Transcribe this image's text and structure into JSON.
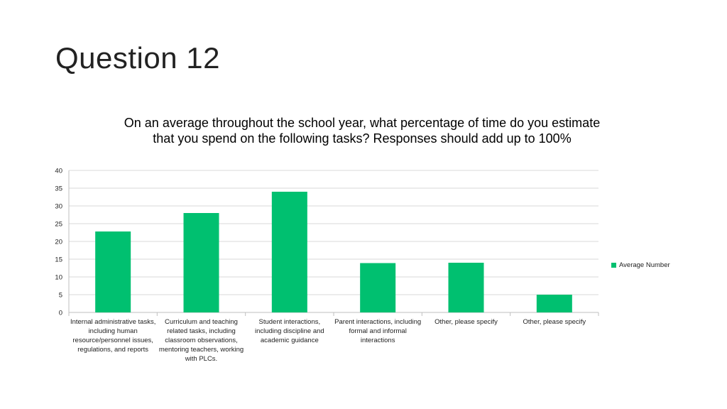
{
  "slide": {
    "title": "Question 12"
  },
  "chart_data": {
    "type": "bar",
    "title": "On an average throughout the school year, what percentage of time do you estimate that you spend on the following tasks?  Responses should add up to 100%",
    "categories": [
      "Internal administrative tasks, including human resource/personnel issues, regulations,  and reports",
      "Curriculum and teaching related tasks, including classroom observations, mentoring teachers, working with PLCs.",
      "Student interactions, including discipline and academic guidance",
      "Parent interactions, including formal and informal interactions",
      "Other, please specify",
      "Other, please specify"
    ],
    "series": [
      {
        "name": "Average Number",
        "values": [
          22.8,
          28.0,
          34.0,
          13.9,
          14.0,
          5.0
        ]
      }
    ],
    "ylim": [
      0,
      40
    ],
    "yticks": [
      0,
      5,
      10,
      15,
      20,
      25,
      30,
      35,
      40
    ],
    "grid": true,
    "legend_position": "right",
    "bar_color": "#00c070"
  }
}
